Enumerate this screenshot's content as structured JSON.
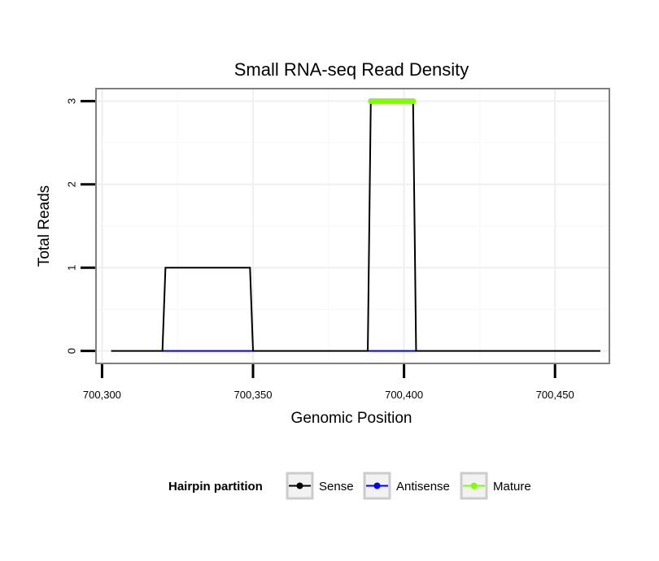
{
  "chart_data": {
    "type": "line",
    "title": "Small RNA-seq Read Density",
    "xlabel": "Genomic Position",
    "ylabel": "Total Reads",
    "xlim": [
      700298,
      700468
    ],
    "ylim": [
      -0.15,
      3.15
    ],
    "x_ticks": [
      700300,
      700350,
      700400,
      700450
    ],
    "x_tick_labels": [
      "700,300",
      "700,350",
      "700,400",
      "700,450"
    ],
    "y_ticks": [
      0,
      1,
      2,
      3
    ],
    "y_tick_labels": [
      "0",
      "1",
      "2",
      "3"
    ],
    "grid": true,
    "legend": {
      "position": "bottom",
      "title": "Hairpin partition",
      "entries": [
        "Sense",
        "Antisense",
        "Mature"
      ]
    },
    "series": [
      {
        "name": "Sense",
        "color": "#000000",
        "x": [
          700303,
          700320,
          700321,
          700349,
          700350,
          700388,
          700389,
          700403,
          700404,
          700465
        ],
        "values": [
          0,
          0,
          1,
          1,
          0,
          0,
          3,
          3,
          0,
          0
        ]
      },
      {
        "name": "Antisense",
        "color": "#0000ff",
        "x": [
          700320,
          700350,
          700388,
          700404
        ],
        "values": [
          0,
          0,
          0,
          0
        ],
        "segments": [
          [
            700320,
            700350
          ],
          [
            700388,
            700404
          ]
        ]
      },
      {
        "name": "Mature",
        "color": "#7fff00",
        "x": [
          700389,
          700403
        ],
        "values": [
          3,
          3
        ]
      }
    ]
  }
}
